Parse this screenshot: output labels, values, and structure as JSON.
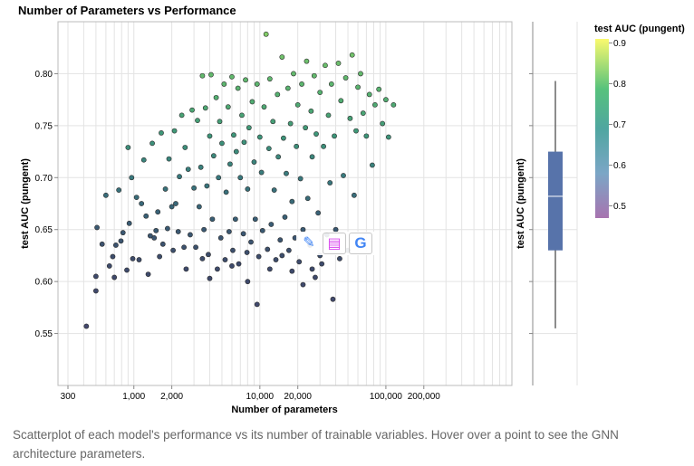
{
  "chart_data": [
    {
      "type": "scatter",
      "title": "Number of Parameters vs Performance",
      "xlabel": "Number of parameters",
      "ylabel": "test AUC (pungent)",
      "x_scale": "log",
      "xlim": [
        250,
        1000000
      ],
      "ylim": [
        0.5,
        0.85
      ],
      "x_ticks": [
        {
          "value": 300,
          "label": "300"
        },
        {
          "value": 1000,
          "label": "1,000"
        },
        {
          "value": 2000,
          "label": "2,000"
        },
        {
          "value": 10000,
          "label": "10,000"
        },
        {
          "value": 20000,
          "label": "20,000"
        },
        {
          "value": 100000,
          "label": "100,000"
        },
        {
          "value": 200000,
          "label": "200,000"
        }
      ],
      "y_ticks": [
        {
          "value": 0.55,
          "label": "0.55"
        },
        {
          "value": 0.6,
          "label": "0.60"
        },
        {
          "value": 0.65,
          "label": "0.65"
        },
        {
          "value": 0.7,
          "label": "0.70"
        },
        {
          "value": 0.75,
          "label": "0.75"
        },
        {
          "value": 0.8,
          "label": "0.80"
        }
      ],
      "grid": true,
      "color_by": "test AUC (pungent)",
      "points": [
        [
          420,
          0.557
        ],
        [
          500,
          0.605
        ],
        [
          500,
          0.591
        ],
        [
          510,
          0.652
        ],
        [
          560,
          0.636
        ],
        [
          600,
          0.683
        ],
        [
          640,
          0.615
        ],
        [
          680,
          0.624
        ],
        [
          700,
          0.604
        ],
        [
          720,
          0.635
        ],
        [
          760,
          0.688
        ],
        [
          790,
          0.639
        ],
        [
          820,
          0.647
        ],
        [
          880,
          0.611
        ],
        [
          900,
          0.729
        ],
        [
          920,
          0.656
        ],
        [
          960,
          0.7
        ],
        [
          980,
          0.622
        ],
        [
          1050,
          0.681
        ],
        [
          1100,
          0.621
        ],
        [
          1150,
          0.675
        ],
        [
          1200,
          0.717
        ],
        [
          1250,
          0.663
        ],
        [
          1300,
          0.607
        ],
        [
          1350,
          0.644
        ],
        [
          1400,
          0.733
        ],
        [
          1450,
          0.642
        ],
        [
          1500,
          0.649
        ],
        [
          1550,
          0.667
        ],
        [
          1600,
          0.624
        ],
        [
          1650,
          0.743
        ],
        [
          1700,
          0.636
        ],
        [
          1780,
          0.689
        ],
        [
          1850,
          0.651
        ],
        [
          1900,
          0.718
        ],
        [
          2000,
          0.672
        ],
        [
          2050,
          0.63
        ],
        [
          2100,
          0.745
        ],
        [
          2150,
          0.675
        ],
        [
          2250,
          0.648
        ],
        [
          2300,
          0.701
        ],
        [
          2400,
          0.76
        ],
        [
          2500,
          0.633
        ],
        [
          2550,
          0.729
        ],
        [
          2600,
          0.612
        ],
        [
          2700,
          0.708
        ],
        [
          2800,
          0.645
        ],
        [
          2900,
          0.765
        ],
        [
          3000,
          0.69
        ],
        [
          3100,
          0.633
        ],
        [
          3200,
          0.755
        ],
        [
          3300,
          0.672
        ],
        [
          3400,
          0.71
        ],
        [
          3500,
          0.798
        ],
        [
          3600,
          0.65
        ],
        [
          3700,
          0.767
        ],
        [
          3800,
          0.692
        ],
        [
          3900,
          0.626
        ],
        [
          4000,
          0.74
        ],
        [
          4100,
          0.799
        ],
        [
          4200,
          0.66
        ],
        [
          4300,
          0.721
        ],
        [
          4500,
          0.777
        ],
        [
          4600,
          0.612
        ],
        [
          4700,
          0.7
        ],
        [
          4800,
          0.754
        ],
        [
          4900,
          0.642
        ],
        [
          5000,
          0.733
        ],
        [
          5200,
          0.79
        ],
        [
          5300,
          0.621
        ],
        [
          5400,
          0.686
        ],
        [
          5600,
          0.768
        ],
        [
          5700,
          0.648
        ],
        [
          5800,
          0.713
        ],
        [
          6000,
          0.797
        ],
        [
          6100,
          0.63
        ],
        [
          6200,
          0.741
        ],
        [
          6400,
          0.66
        ],
        [
          6500,
          0.725
        ],
        [
          6700,
          0.786
        ],
        [
          6800,
          0.617
        ],
        [
          7000,
          0.7
        ],
        [
          7200,
          0.76
        ],
        [
          7400,
          0.646
        ],
        [
          7500,
          0.734
        ],
        [
          7700,
          0.794
        ],
        [
          7900,
          0.628
        ],
        [
          8000,
          0.689
        ],
        [
          8200,
          0.748
        ],
        [
          8500,
          0.638
        ],
        [
          8700,
          0.773
        ],
        [
          9000,
          0.715
        ],
        [
          9200,
          0.66
        ],
        [
          9500,
          0.79
        ],
        [
          9800,
          0.624
        ],
        [
          10000,
          0.739
        ],
        [
          10300,
          0.705
        ],
        [
          10500,
          0.649
        ],
        [
          10800,
          0.768
        ],
        [
          11200,
          0.838
        ],
        [
          11500,
          0.631
        ],
        [
          11800,
          0.728
        ],
        [
          12000,
          0.795
        ],
        [
          12300,
          0.655
        ],
        [
          12700,
          0.754
        ],
        [
          13000,
          0.688
        ],
        [
          13400,
          0.621
        ],
        [
          13800,
          0.78
        ],
        [
          14000,
          0.72
        ],
        [
          14500,
          0.64
        ],
        [
          15000,
          0.816
        ],
        [
          15400,
          0.738
        ],
        [
          15800,
          0.662
        ],
        [
          16200,
          0.704
        ],
        [
          16700,
          0.786
        ],
        [
          17000,
          0.63
        ],
        [
          17500,
          0.752
        ],
        [
          18000,
          0.677
        ],
        [
          18500,
          0.8
        ],
        [
          19000,
          0.642
        ],
        [
          19500,
          0.73
        ],
        [
          20000,
          0.77
        ],
        [
          20500,
          0.619
        ],
        [
          21000,
          0.699
        ],
        [
          21500,
          0.79
        ],
        [
          22000,
          0.65
        ],
        [
          23000,
          0.748
        ],
        [
          23500,
          0.812
        ],
        [
          24000,
          0.68
        ],
        [
          25000,
          0.635
        ],
        [
          25500,
          0.764
        ],
        [
          26000,
          0.72
        ],
        [
          27000,
          0.798
        ],
        [
          27500,
          0.604
        ],
        [
          28000,
          0.742
        ],
        [
          29000,
          0.666
        ],
        [
          30000,
          0.782
        ],
        [
          31000,
          0.617
        ],
        [
          32000,
          0.73
        ],
        [
          33000,
          0.808
        ],
        [
          34000,
          0.645
        ],
        [
          35000,
          0.76
        ],
        [
          36000,
          0.695
        ],
        [
          37000,
          0.79
        ],
        [
          38000,
          0.583
        ],
        [
          39000,
          0.74
        ],
        [
          40000,
          0.65
        ],
        [
          42000,
          0.81
        ],
        [
          43000,
          0.622
        ],
        [
          44000,
          0.774
        ],
        [
          46000,
          0.702
        ],
        [
          48000,
          0.796
        ],
        [
          50000,
          0.63
        ],
        [
          52000,
          0.757
        ],
        [
          54000,
          0.818
        ],
        [
          56000,
          0.683
        ],
        [
          58000,
          0.745
        ],
        [
          60000,
          0.787
        ],
        [
          63000,
          0.8
        ],
        [
          66000,
          0.762
        ],
        [
          70000,
          0.74
        ],
        [
          74000,
          0.78
        ],
        [
          78000,
          0.712
        ],
        [
          82000,
          0.77
        ],
        [
          88000,
          0.785
        ],
        [
          94000,
          0.752
        ],
        [
          100000,
          0.775
        ],
        [
          105000,
          0.739
        ],
        [
          115000,
          0.77
        ],
        [
          8000,
          0.6
        ],
        [
          9500,
          0.578
        ],
        [
          12000,
          0.612
        ],
        [
          15000,
          0.625
        ],
        [
          18000,
          0.61
        ],
        [
          22000,
          0.597
        ],
        [
          26000,
          0.612
        ],
        [
          30000,
          0.625
        ],
        [
          6000,
          0.615
        ],
        [
          4000,
          0.603
        ],
        [
          3500,
          0.622
        ]
      ],
      "colorbar": {
        "title": "test AUC (pungent)",
        "min": 0.47,
        "max": 0.91,
        "ticks": [
          {
            "value": 0.5,
            "label": "0.5"
          },
          {
            "value": 0.6,
            "label": "0.6"
          },
          {
            "value": 0.7,
            "label": "0.7"
          },
          {
            "value": 0.8,
            "label": "0.8"
          },
          {
            "value": 0.9,
            "label": "0.9"
          }
        ]
      }
    },
    {
      "type": "box",
      "ylabel": "test AUC (pungent)",
      "ylim": [
        0.5,
        0.85
      ],
      "whisker_low": 0.555,
      "q1": 0.63,
      "median": 0.682,
      "q3": 0.725,
      "whisker_high": 0.793,
      "color": "#5773aa"
    }
  ],
  "caption": "Scatterplot of each model's performance vs its number of trainable variables. Hover over a point to see the GNN architecture parameters.",
  "toolbar": {
    "edit_icon": "✎",
    "comment_icon": "▤",
    "google_icon": "G"
  }
}
